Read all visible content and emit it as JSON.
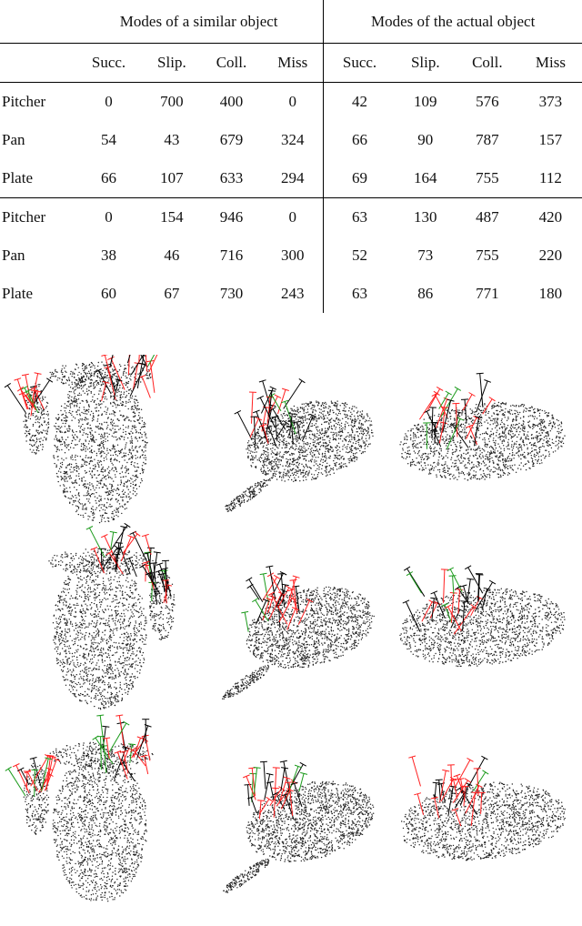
{
  "table": {
    "group_headers": [
      "Modes of a similar object",
      "Modes of the actual object"
    ],
    "columns": [
      "Succ.",
      "Slip.",
      "Coll.",
      "Miss",
      "Succ.",
      "Slip.",
      "Coll.",
      "Miss"
    ],
    "groups": [
      [
        {
          "object": "Pitcher",
          "similar": [
            "0",
            "700",
            "400",
            "0"
          ],
          "actual": [
            "42",
            "109",
            "576",
            "373"
          ]
        },
        {
          "object": "Pan",
          "similar": [
            "54",
            "43",
            "679",
            "324"
          ],
          "actual": [
            "66",
            "90",
            "787",
            "157"
          ]
        },
        {
          "object": "Plate",
          "similar": [
            "66",
            "107",
            "633",
            "294"
          ],
          "actual": [
            "69",
            "164",
            "755",
            "112"
          ]
        }
      ],
      [
        {
          "object": "Pitcher",
          "similar": [
            "0",
            "154",
            "946",
            "0"
          ],
          "actual": [
            "63",
            "130",
            "487",
            "420"
          ]
        },
        {
          "object": "Pan",
          "similar": [
            "38",
            "46",
            "716",
            "300"
          ],
          "actual": [
            "52",
            "73",
            "755",
            "220"
          ]
        },
        {
          "object": "Plate",
          "similar": [
            "60",
            "67",
            "730",
            "243"
          ],
          "actual": [
            "63",
            "86",
            "771",
            "180"
          ]
        }
      ]
    ]
  },
  "figure": {
    "grid": [
      [
        "pitcher",
        "pan",
        "plate"
      ],
      [
        "pitcher",
        "pan",
        "plate"
      ],
      [
        "pitcher",
        "pan",
        "plate"
      ]
    ],
    "colors": {
      "points": "#222222",
      "grasp_slip": "#ff2020",
      "grasp_collision": "#000000",
      "grasp_success": "#1a9a1a"
    }
  }
}
